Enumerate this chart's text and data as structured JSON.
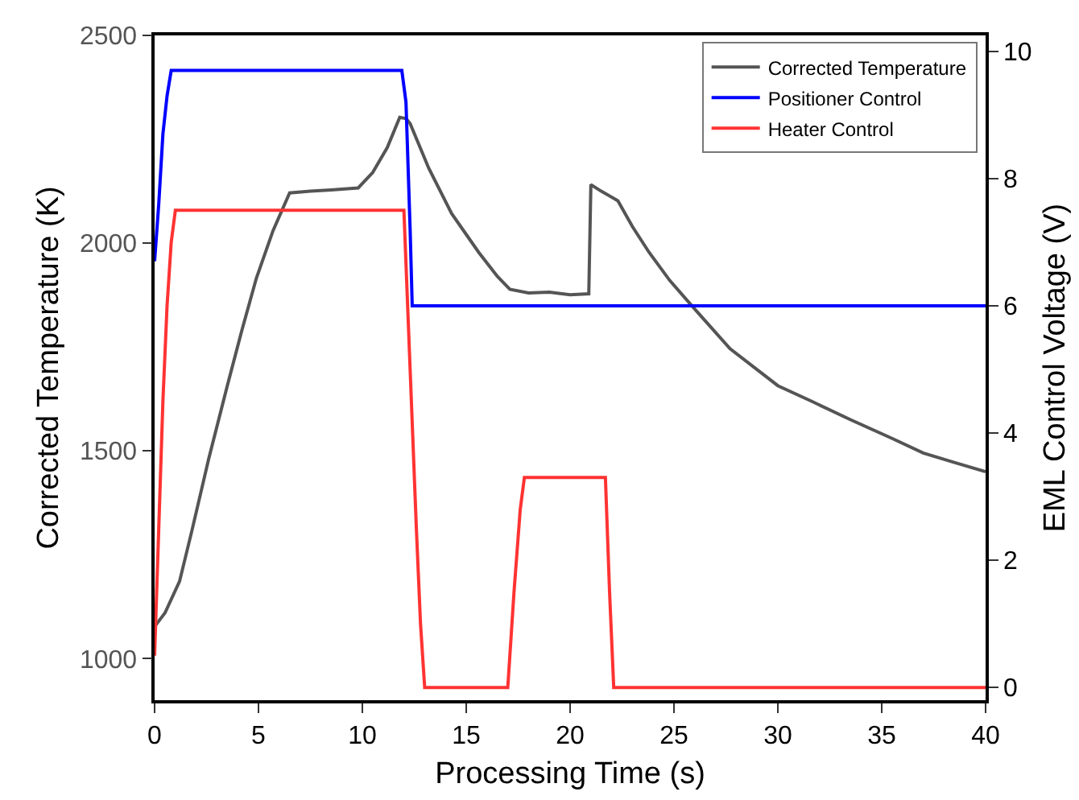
{
  "chart_data": {
    "type": "line",
    "xlabel": "Processing Time (s)",
    "ylabel": "Corrected Temperature (K)",
    "y2label": "EML Control Voltage (V)",
    "xlim": [
      0,
      40
    ],
    "xticks": [
      0,
      5,
      10,
      15,
      20,
      25,
      30,
      35,
      40
    ],
    "ylim": [
      900,
      2500
    ],
    "yticks": [
      1000,
      1500,
      2000,
      2500
    ],
    "y2lim": [
      -0.2,
      10.25
    ],
    "y2ticks": [
      0,
      2,
      4,
      6,
      8,
      10
    ],
    "grid": false,
    "legend": "top right",
    "line_style": "solid",
    "marker": "none",
    "series": [
      {
        "name": "Corrected Temperature",
        "color": "#555555",
        "x": [
          0,
          0.5,
          1.2,
          1.8,
          2.6,
          3.5,
          4.2,
          4.9,
          5.7,
          6.5,
          7.5,
          8.5,
          9.8,
          10.5,
          11.2,
          11.8,
          12.1,
          12.3,
          13.2,
          14.3,
          15.6,
          16.5,
          17.1,
          18,
          19,
          20,
          20.9,
          21,
          21.5,
          22.3,
          23,
          23.8,
          24.8,
          25.9,
          27.7,
          30,
          31.6,
          33.5,
          35.5,
          37,
          38.5,
          40
        ],
        "values": [
          1077,
          1110,
          1186,
          1309,
          1480,
          1657,
          1790,
          1916,
          2030,
          2121,
          2125,
          2128,
          2133,
          2170,
          2230,
          2303,
          2300,
          2288,
          2180,
          2071,
          1978,
          1920,
          1889,
          1880,
          1882,
          1876,
          1878,
          2141,
          2125,
          2102,
          2040,
          1978,
          1910,
          1847,
          1746,
          1657,
          1620,
          1575,
          1530,
          1495,
          1472,
          1450
        ]
      },
      {
        "name": "Positioner Control",
        "color": "#0000ff",
        "axis": "y2",
        "x": [
          0,
          0.2,
          0.4,
          0.6,
          0.8,
          11.9,
          12.1,
          12.3,
          12.4,
          40
        ],
        "values": [
          6.7,
          7.6,
          8.7,
          9.3,
          9.7,
          9.7,
          9.2,
          7.2,
          6.0,
          6.0
        ]
      },
      {
        "name": "Heater Control",
        "color": "#ff3333",
        "axis": "y2",
        "x": [
          0,
          0.2,
          0.4,
          0.6,
          0.8,
          1.0,
          12.0,
          12.3,
          12.6,
          12.8,
          13.0,
          17.0,
          17.3,
          17.6,
          17.8,
          21.7,
          21.9,
          22.1,
          40
        ],
        "values": [
          0.5,
          2.5,
          4.5,
          6,
          7,
          7.5,
          7.5,
          5,
          2.5,
          1,
          0,
          0,
          1.5,
          2.8,
          3.3,
          3.3,
          1.5,
          0,
          0
        ]
      }
    ]
  }
}
